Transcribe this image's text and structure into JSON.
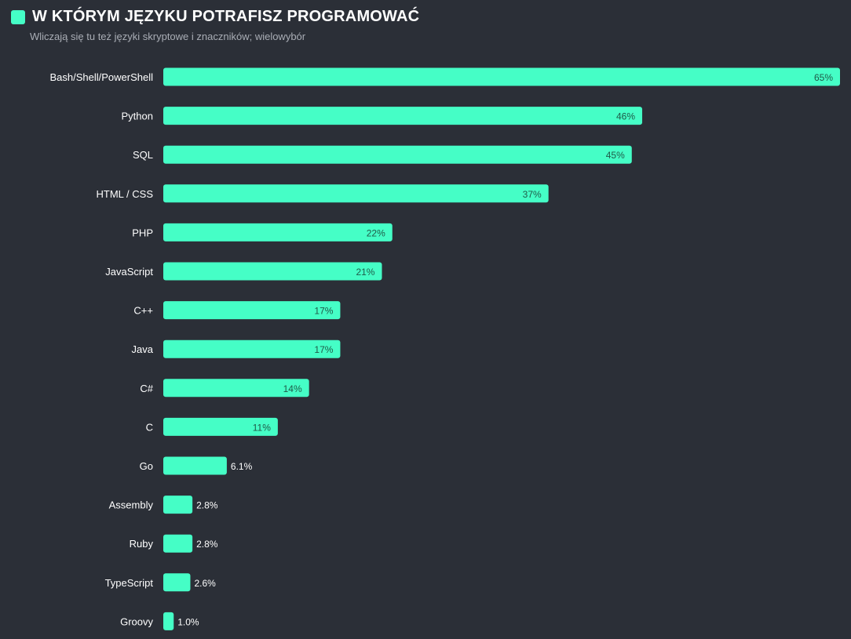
{
  "header": {
    "title": "W KTÓRYM JĘZYKU POTRAFISZ PROGRAMOWAĆ",
    "subtitle": "Wliczają się tu też języki skryptowe i znaczników; wielowybór"
  },
  "colors": {
    "background": "#2b2f37",
    "bar": "#45fec6",
    "label": "#ffffff",
    "value_inside": "#1f5a48",
    "value_outside": "#ffffff"
  },
  "chart_data": {
    "type": "bar",
    "orientation": "horizontal",
    "categories": [
      "Bash/Shell/PowerShell",
      "Python",
      "SQL",
      "HTML / CSS",
      "PHP",
      "JavaScript",
      "C++",
      "Java",
      "C#",
      "C",
      "Go",
      "Assembly",
      "Ruby",
      "TypeScript",
      "Groovy"
    ],
    "values": [
      65,
      46,
      45,
      37,
      22,
      21,
      17,
      17,
      14,
      11,
      6.1,
      2.8,
      2.8,
      2.6,
      1.0
    ],
    "value_labels": [
      "65%",
      "46%",
      "45%",
      "37%",
      "22%",
      "21%",
      "17%",
      "17%",
      "14%",
      "11%",
      "6.1%",
      "2.8%",
      "2.8%",
      "2.6%",
      "1.0%"
    ],
    "unit": "%",
    "xlim": [
      0,
      65
    ],
    "grid": false,
    "legend": "none"
  }
}
